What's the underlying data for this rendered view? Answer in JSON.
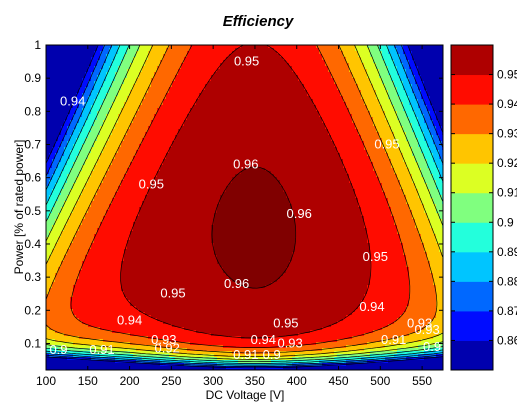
{
  "chart_data": {
    "type": "heatmap",
    "subtype": "filled-contour",
    "title": "Efficiency",
    "xlabel": "DC Voltage [V]",
    "ylabel": "Power [% of rated power]",
    "xlim": [
      100,
      575
    ],
    "ylim": [
      0.02,
      1
    ],
    "xticks": [
      100,
      150,
      200,
      250,
      300,
      350,
      400,
      450,
      500,
      550
    ],
    "yticks": [
      0.1,
      0.2,
      0.3,
      0.4,
      0.5,
      0.6,
      0.7,
      0.8,
      0.9,
      1
    ],
    "ytick_labels": [
      "0.1",
      "0.2",
      "0.3",
      "0.4",
      "0.5",
      "0.6",
      "0.7",
      "0.8",
      "0.9",
      "1"
    ],
    "colorbar": {
      "min": 0.85,
      "max": 0.96,
      "ticks": [
        0.86,
        0.87,
        0.88,
        0.89,
        0.9,
        0.91,
        0.92,
        0.93,
        0.94,
        0.95
      ],
      "tick_labels": [
        "0.86",
        "0.87",
        "0.88",
        "0.89",
        "0.9",
        "0.91",
        "0.92",
        "0.93",
        "0.94",
        "0.95"
      ]
    },
    "contour_levels": [
      0.86,
      0.87,
      0.88,
      0.89,
      0.9,
      0.91,
      0.92,
      0.93,
      0.94,
      0.95,
      0.96
    ],
    "contour_labels": [
      {
        "text": "0.95",
        "x": 340,
        "y": 0.95
      },
      {
        "text": "0.94",
        "x": 132,
        "y": 0.83
      },
      {
        "text": "0.95",
        "x": 508,
        "y": 0.7
      },
      {
        "text": "0.96",
        "x": 339,
        "y": 0.64
      },
      {
        "text": "0.95",
        "x": 226,
        "y": 0.58
      },
      {
        "text": "0.96",
        "x": 403,
        "y": 0.49
      },
      {
        "text": "0.95",
        "x": 494,
        "y": 0.36
      },
      {
        "text": "0.95",
        "x": 252,
        "y": 0.25
      },
      {
        "text": "0.96",
        "x": 328,
        "y": 0.28
      },
      {
        "text": "0.94",
        "x": 200,
        "y": 0.17
      },
      {
        "text": "0.94",
        "x": 490,
        "y": 0.21
      },
      {
        "text": "0.95",
        "x": 387,
        "y": 0.16
      },
      {
        "text": "0.93",
        "x": 241,
        "y": 0.11
      },
      {
        "text": "0.93",
        "x": 547,
        "y": 0.16
      },
      {
        "text": "0.94",
        "x": 360,
        "y": 0.11
      },
      {
        "text": "0.93",
        "x": 392,
        "y": 0.1
      },
      {
        "text": "0.92",
        "x": 245,
        "y": 0.085
      },
      {
        "text": "0.9",
        "x": 115,
        "y": 0.08
      },
      {
        "text": "0.91",
        "x": 167,
        "y": 0.08
      },
      {
        "text": "0.91",
        "x": 339,
        "y": 0.065
      },
      {
        "text": "0.9",
        "x": 370,
        "y": 0.065
      },
      {
        "text": "0.91",
        "x": 516,
        "y": 0.11
      },
      {
        "text": "0.9",
        "x": 562,
        "y": 0.09
      },
      {
        "text": "0.93",
        "x": 556,
        "y": 0.14
      }
    ]
  }
}
